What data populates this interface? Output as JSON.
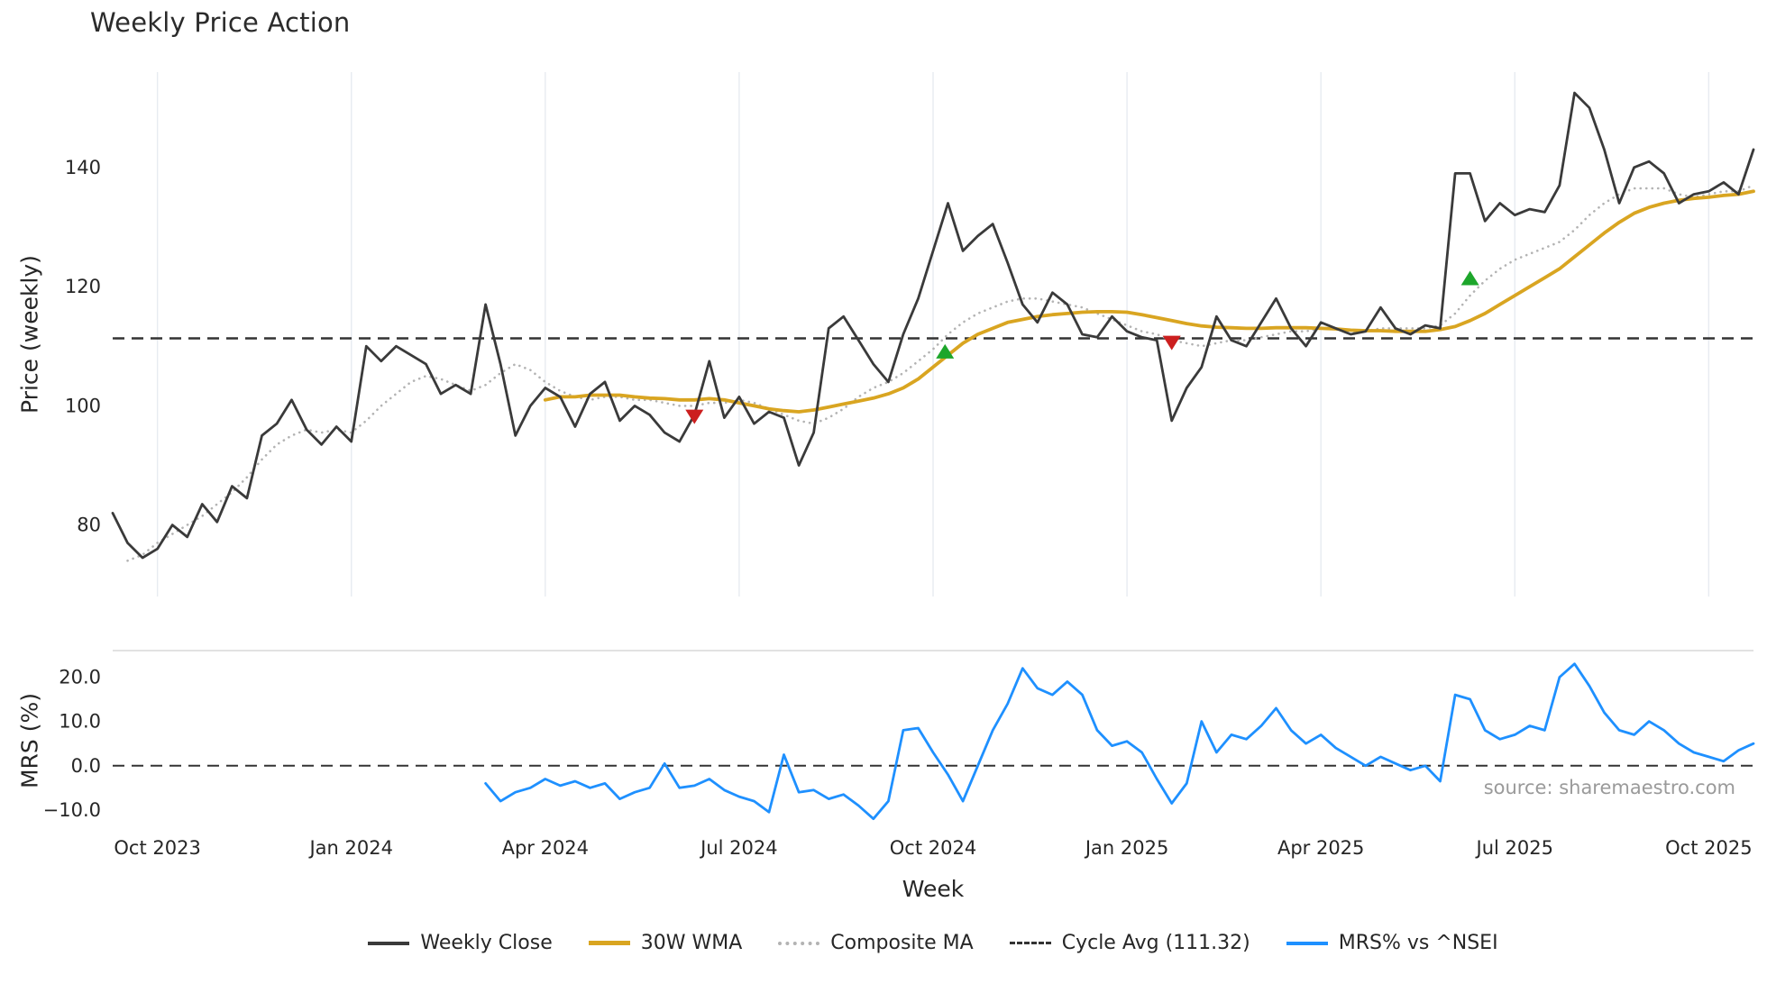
{
  "chart_data": {
    "type": "line",
    "title": "Weekly Price Action",
    "xlabel": "Week",
    "source_note": "source: sharemaestro.com",
    "grid_color": "#e7ebf1",
    "panel_border_color": "#d9d9d9",
    "tick_text_color": "#262626",
    "x_range": [
      0,
      110
    ],
    "x_tick_positions": [
      3,
      16,
      29,
      42,
      55,
      68,
      81,
      94,
      107
    ],
    "x_tick_labels": [
      "Oct 2023",
      "Jan 2024",
      "Apr 2024",
      "Jul 2024",
      "Oct 2024",
      "Jan 2025",
      "Apr 2025",
      "Jul 2025",
      "Oct 2025"
    ],
    "top_panel": {
      "ylabel": "Price (weekly)",
      "ylim": [
        68,
        156
      ],
      "ytick_values": [
        80,
        100,
        120,
        140
      ],
      "ytick_labels": [
        "80",
        "100",
        "120",
        "140"
      ],
      "cycle_avg": 111.32,
      "cycle_avg_color": "#333333",
      "series": [
        {
          "name": "Weekly Close",
          "color": "#3a3a3a",
          "style": "solid",
          "width": 2.8,
          "values": [
            82,
            77,
            74.5,
            76,
            80,
            78,
            83.5,
            80.5,
            86.5,
            84.5,
            95,
            97,
            101,
            96,
            93.5,
            96.5,
            94,
            110,
            107.5,
            110,
            108.5,
            107,
            102,
            103.5,
            102,
            117,
            107,
            95,
            100,
            103,
            101.5,
            96.5,
            102,
            104,
            97.5,
            100,
            98.5,
            95.5,
            94,
            98.5,
            107.5,
            98,
            101.5,
            97,
            99,
            98,
            90,
            95.5,
            113,
            115,
            111,
            107,
            104,
            112,
            118,
            126,
            134,
            126,
            128.5,
            130.5,
            124,
            117,
            114,
            119,
            117,
            112,
            111.5,
            115,
            112.5,
            111.5,
            111,
            97.5,
            103,
            106.5,
            115,
            111,
            110,
            114,
            118,
            113,
            110,
            114,
            113,
            112,
            112.5,
            116.5,
            113,
            112,
            113.5,
            113,
            139,
            139,
            131,
            134,
            132,
            133,
            132.5,
            137,
            152.5,
            150,
            143,
            134,
            140,
            141,
            139,
            134,
            135.5,
            136,
            137.5,
            135.5,
            143
          ]
        },
        {
          "name": "30W WMA",
          "color": "#d9a521",
          "style": "solid",
          "width": 3.8,
          "values": [
            null,
            null,
            null,
            null,
            null,
            null,
            null,
            null,
            null,
            null,
            null,
            null,
            null,
            null,
            null,
            null,
            null,
            null,
            null,
            null,
            null,
            null,
            null,
            null,
            null,
            null,
            null,
            null,
            null,
            101,
            101.5,
            101.5,
            101.8,
            101.8,
            101.8,
            101.5,
            101.3,
            101.2,
            101,
            101,
            101.2,
            101,
            100.5,
            100,
            99.5,
            99.2,
            99,
            99.3,
            99.8,
            100.3,
            100.8,
            101.3,
            102,
            103,
            104.5,
            106.5,
            108.5,
            110.5,
            112,
            113,
            114,
            114.5,
            115,
            115.3,
            115.5,
            115.7,
            115.8,
            115.8,
            115.7,
            115.3,
            114.8,
            114.3,
            113.8,
            113.4,
            113.2,
            113.1,
            113,
            113,
            113.1,
            113.1,
            113.1,
            113,
            112.9,
            112.7,
            112.6,
            112.6,
            112.5,
            112.5,
            112.5,
            112.8,
            113.3,
            114.3,
            115.5,
            117,
            118.5,
            120,
            121.5,
            123,
            125,
            127,
            129,
            130.8,
            132.3,
            133.3,
            134,
            134.5,
            134.8,
            135,
            135.3,
            135.5,
            136
          ]
        },
        {
          "name": "Composite MA",
          "color": "#b3b3b3",
          "style": "dotted",
          "width": 2.6,
          "values": [
            null,
            74,
            75,
            77,
            78.5,
            80,
            81.5,
            83.5,
            85.5,
            88,
            91,
            93.5,
            95,
            96,
            95.5,
            96,
            95.5,
            97.5,
            100,
            102,
            104,
            105,
            104.5,
            103.5,
            102.5,
            103.5,
            105.5,
            107,
            106,
            104,
            102.5,
            101.5,
            101,
            101.5,
            101.5,
            101,
            101,
            100.5,
            100,
            100,
            100.5,
            100.5,
            101,
            100.5,
            99.5,
            98.5,
            97.5,
            97,
            98,
            99.5,
            101.5,
            103,
            104,
            105.5,
            107.5,
            109.5,
            112,
            114,
            115.5,
            116.5,
            117.5,
            118,
            118,
            117.5,
            117,
            116.5,
            115.5,
            114.5,
            113.5,
            112.5,
            112,
            111,
            110.5,
            110,
            110.5,
            111,
            111,
            111.5,
            112,
            112.5,
            112.5,
            113,
            113,
            112.5,
            112.5,
            113,
            113,
            113,
            113,
            113.5,
            115.5,
            118.5,
            121,
            123,
            124.5,
            125.5,
            126.5,
            127.5,
            129.5,
            132,
            134,
            135.5,
            136.5,
            136.5,
            136.5,
            135.5,
            135,
            135.5,
            136,
            136,
            137
          ]
        }
      ],
      "buy_signals": {
        "color": "#1da62b",
        "points": [
          {
            "x": 55.8,
            "y": 109
          },
          {
            "x": 91,
            "y": 121.3
          }
        ]
      },
      "sell_signals": {
        "color": "#cc1f1f",
        "points": [
          {
            "x": 39,
            "y": 98.3
          },
          {
            "x": 71,
            "y": 110.7
          }
        ]
      }
    },
    "bottom_panel": {
      "ylabel": "MRS (%)",
      "ylim": [
        -14.5,
        26
      ],
      "ytick_values": [
        -10,
        0,
        10,
        20
      ],
      "ytick_labels": [
        "−10.0",
        "0.0",
        "10.0",
        "20.0"
      ],
      "zero_line": 0,
      "zero_line_color": "#333333",
      "series": [
        {
          "name": "MRS% vs ^NSEI",
          "color": "#1e90ff",
          "style": "solid",
          "width": 2.8,
          "values": [
            null,
            null,
            null,
            null,
            null,
            null,
            null,
            null,
            null,
            null,
            null,
            null,
            null,
            null,
            null,
            null,
            null,
            null,
            null,
            null,
            null,
            null,
            null,
            null,
            null,
            -4,
            -8,
            -6,
            -5,
            -3,
            -4.5,
            -3.5,
            -5,
            -4,
            -7.5,
            -6,
            -5,
            0.5,
            -5,
            -4.5,
            -3,
            -5.5,
            -7,
            -8,
            -10.5,
            2.5,
            -6,
            -5.5,
            -7.5,
            -6.5,
            -9,
            -12,
            -8,
            8,
            8.5,
            3,
            -2,
            -8,
            0,
            8,
            14,
            22,
            17.5,
            16,
            19,
            16,
            8,
            4.5,
            5.5,
            3,
            -3,
            -8.5,
            -4,
            10,
            3,
            7,
            6,
            9,
            13,
            8,
            5,
            7,
            4,
            2,
            0,
            2,
            0.5,
            -1,
            0,
            -3.5,
            16,
            15,
            8,
            6,
            7,
            9,
            8,
            20,
            23,
            18,
            12,
            8,
            7,
            10,
            8,
            5,
            3,
            2,
            1,
            3.5,
            5
          ]
        }
      ]
    },
    "legend": [
      {
        "label": "Weekly Close",
        "color": "#3a3a3a",
        "style": "solid",
        "thickness": 4
      },
      {
        "label": "30W WMA",
        "color": "#d9a521",
        "style": "solid",
        "thickness": 5
      },
      {
        "label": "Composite MA",
        "color": "#b3b3b3",
        "style": "dotted",
        "thickness": 4
      },
      {
        "label": "Cycle Avg (111.32)",
        "color": "#333333",
        "style": "dashed",
        "thickness": 3
      },
      {
        "label": "MRS% vs ^NSEI",
        "color": "#1e90ff",
        "style": "solid",
        "thickness": 4
      }
    ]
  }
}
